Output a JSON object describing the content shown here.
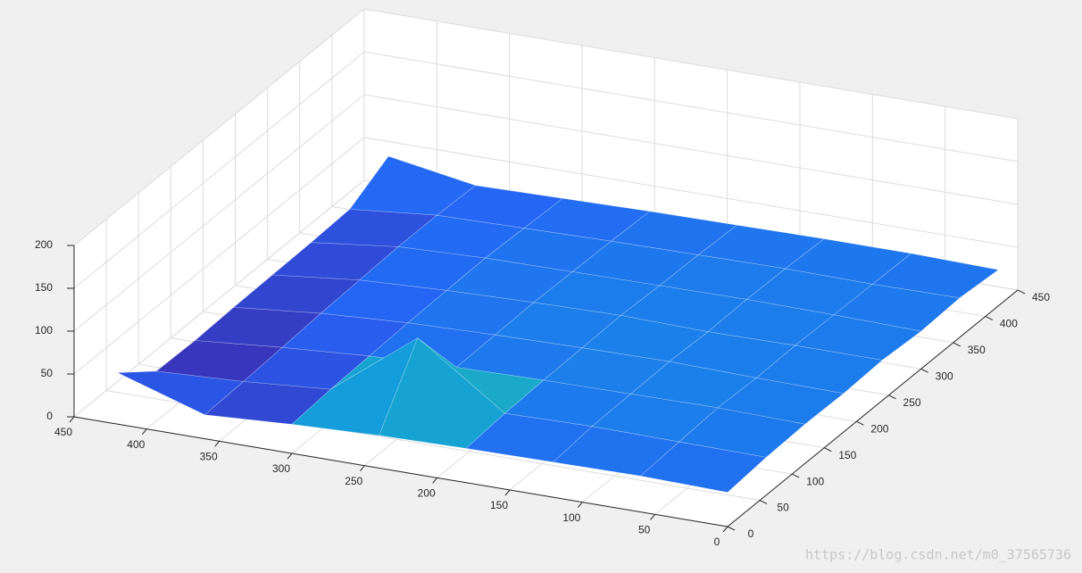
{
  "chart_data": {
    "type": "surface",
    "x": [
      0,
      60,
      120,
      180,
      240,
      300,
      360,
      420
    ],
    "y": [
      0,
      60,
      120,
      180,
      240,
      300,
      360,
      420
    ],
    "z": [
      [
        40,
        44,
        46,
        45,
        47,
        44,
        46,
        42
      ],
      [
        42,
        45,
        48,
        46,
        47,
        46,
        45,
        44
      ],
      [
        41,
        46,
        47,
        48,
        46,
        47,
        46,
        44
      ],
      [
        40,
        44,
        46,
        47,
        48,
        46,
        45,
        43
      ],
      [
        38,
        115,
        44,
        45,
        46,
        45,
        44,
        42
      ],
      [
        34,
        38,
        40,
        42,
        43,
        44,
        42,
        40
      ],
      [
        28,
        30,
        33,
        36,
        38,
        40,
        40,
        38
      ],
      [
        60,
        25,
        24,
        26,
        27,
        28,
        30,
        55
      ]
    ],
    "colormap": "parula",
    "xlim": [
      0,
      450
    ],
    "ylim": [
      0,
      450
    ],
    "zlim": [
      0,
      200
    ],
    "xticks": [
      0,
      50,
      100,
      150,
      200,
      250,
      300,
      350,
      400,
      450
    ],
    "yticks": [
      0,
      50,
      100,
      150,
      200,
      250,
      300,
      350,
      400,
      450
    ],
    "zticks": [
      0,
      50,
      100,
      150,
      200
    ],
    "grid": true,
    "watermark": "https://blog.csdn.net/m0_37565736"
  }
}
